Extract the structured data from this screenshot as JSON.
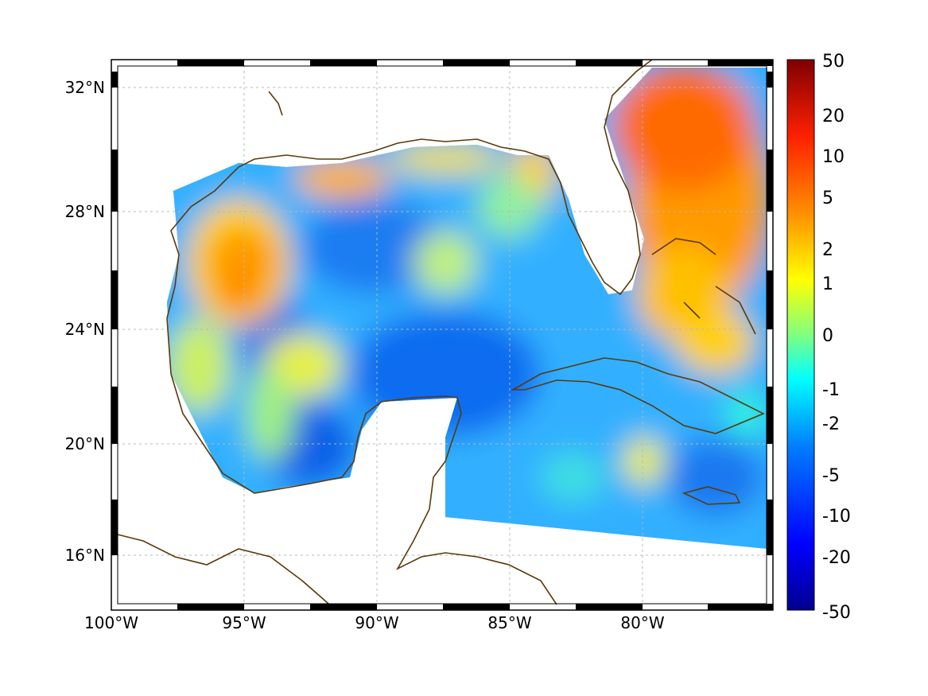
{
  "map": {
    "lat_ticks": [
      "32°N",
      "28°N",
      "24°N",
      "20°N",
      "16°N"
    ],
    "lon_ticks": [
      "100°W",
      "95°W",
      "90°W",
      "85°W",
      "80°W"
    ],
    "coastline_color": "#5a3a0a",
    "grid": true
  },
  "colorbar": {
    "labels": [
      "50",
      "20",
      "10",
      "5",
      "2",
      "1",
      "0",
      "-1",
      "-2",
      "-5",
      "-10",
      "-20",
      "-50"
    ],
    "colormap": [
      "#00008f",
      "#0000ff",
      "#0080ff",
      "#00ffff",
      "#80ff80",
      "#ffff00",
      "#ff8000",
      "#ff0000",
      "#800000"
    ]
  }
}
